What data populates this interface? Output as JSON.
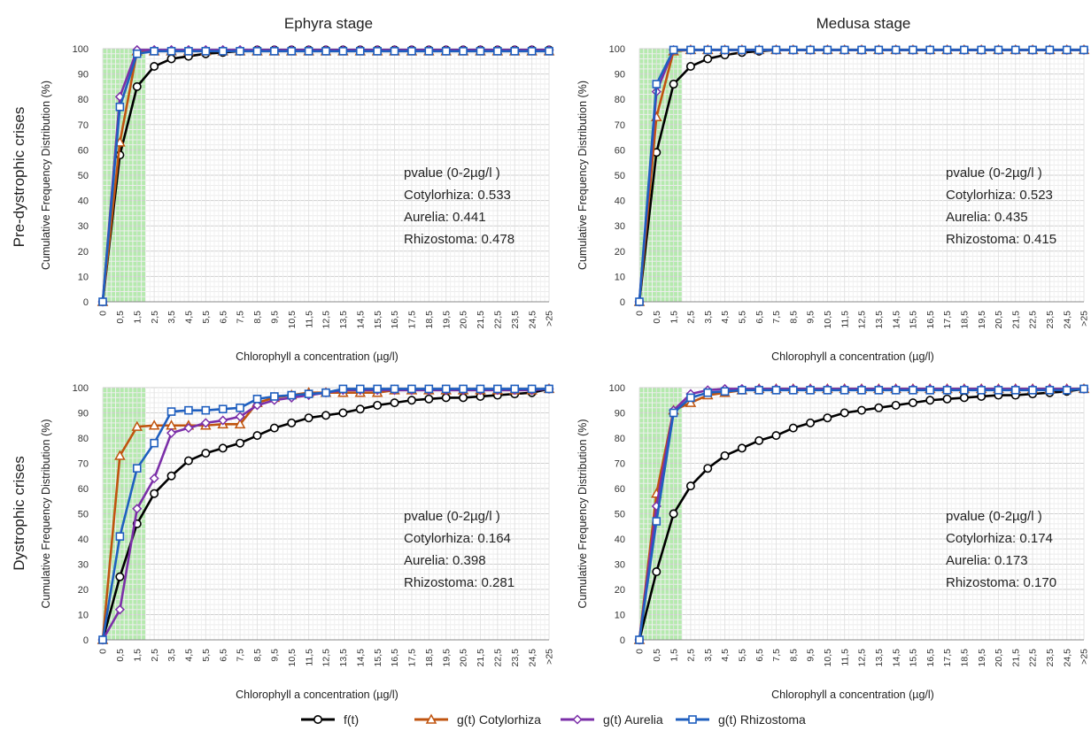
{
  "column_titles": [
    "Ephyra stage",
    "Medusa stage"
  ],
  "row_titles": [
    "Pre-dystrophic crises",
    "Dystrophic crises"
  ],
  "legend": [
    {
      "label": "f(t)",
      "color": "#000000",
      "marker": "circle"
    },
    {
      "label": "g(t) Cotylorhiza",
      "color": "#c0540f",
      "marker": "triangle"
    },
    {
      "label": "g(t) Aurelia",
      "color": "#7b2fa8",
      "marker": "diamond"
    },
    {
      "label": "g(t) Rhizostoma",
      "color": "#1f5fbf",
      "marker": "square"
    }
  ],
  "chart_data": [
    {
      "type": "line",
      "title": "Ephyra stage",
      "row_label": "Pre-dystrophic crises",
      "xlabel": "Chlorophyll a concentration (µg/l)",
      "ylabel": "Cumulative Frequency Distribution (%)",
      "categories": [
        "0",
        "0,5",
        "1,5",
        "2,5",
        "3,5",
        "4,5",
        "5,5",
        "6,5",
        "7,5",
        "8,5",
        "9,5",
        "10,5",
        "11,5",
        "12,5",
        "13,5",
        "14,5",
        "15,5",
        "16,5",
        "17,5",
        "18,5",
        "19,5",
        "20,5",
        "21,5",
        "22,5",
        "23,5",
        "24,5",
        ">25"
      ],
      "ylim": [
        0,
        100
      ],
      "yticks": [
        0,
        10,
        20,
        30,
        40,
        50,
        60,
        70,
        80,
        90,
        100
      ],
      "highlight_band": {
        "from": "0",
        "to": "2",
        "color": "#a8e6a0"
      },
      "grid": true,
      "annotation": [
        "pvalue (0-2µg/l )",
        "Cotylorhiza: 0.533",
        "Aurelia: 0.441",
        "Rhizostoma: 0.478"
      ],
      "series": [
        {
          "name": "f(t)",
          "values": [
            0,
            58,
            85,
            93,
            96,
            97,
            98,
            98.5,
            99,
            99.5,
            99.5,
            99.5,
            99.5,
            99.5,
            99.5,
            99.5,
            99.5,
            99.5,
            99.5,
            99.5,
            99.5,
            99.5,
            99.5,
            99.5,
            99.5,
            99.5,
            99.5
          ]
        },
        {
          "name": "g(t) Cotylorhiza",
          "values": [
            0,
            63,
            99,
            99,
            99,
            99,
            99,
            99,
            99,
            99,
            99,
            99,
            99,
            99,
            99,
            99,
            99,
            99,
            99,
            99,
            99,
            99,
            99,
            99,
            99,
            99,
            99
          ]
        },
        {
          "name": "g(t) Aurelia",
          "values": [
            0,
            81,
            99.5,
            99.5,
            99.5,
            99.5,
            99.5,
            99.5,
            99.5,
            99.5,
            99.5,
            99.5,
            99.5,
            99.5,
            99.5,
            99.5,
            99.5,
            99.5,
            99.5,
            99.5,
            99.5,
            99.5,
            99.5,
            99.5,
            99.5,
            99.5,
            99.5
          ]
        },
        {
          "name": "g(t) Rhizostoma",
          "values": [
            0,
            77,
            98,
            99,
            99,
            99,
            99,
            99,
            99,
            99,
            99,
            99,
            99,
            99,
            99,
            99,
            99,
            99,
            99,
            99,
            99,
            99,
            99,
            99,
            99,
            99,
            99
          ]
        }
      ]
    },
    {
      "type": "line",
      "title": "Medusa stage",
      "row_label": "Pre-dystrophic crises",
      "xlabel": "Chlorophyll a concentration (µg/l)",
      "ylabel": "Cumulative Frequency Distribution (%)",
      "categories": [
        "0",
        "0,5",
        "1,5",
        "2,5",
        "3,5",
        "4,5",
        "5,5",
        "6,5",
        "7,5",
        "8,5",
        "9,5",
        "10,5",
        "11,5",
        "12,5",
        "13,5",
        "14,5",
        "15,5",
        "16,5",
        "17,5",
        "18,5",
        "19,5",
        "20,5",
        "21,5",
        "22,5",
        "23,5",
        "24,5",
        ">25"
      ],
      "ylim": [
        0,
        100
      ],
      "yticks": [
        0,
        10,
        20,
        30,
        40,
        50,
        60,
        70,
        80,
        90,
        100
      ],
      "highlight_band": {
        "from": "0",
        "to": "2",
        "color": "#a8e6a0"
      },
      "grid": true,
      "annotation": [
        "pvalue (0-2µg/l )",
        "Cotylorhiza: 0.523",
        "Aurelia: 0.435",
        "Rhizostoma: 0.415"
      ],
      "series": [
        {
          "name": "f(t)",
          "values": [
            0,
            59,
            86,
            93,
            96,
            97.5,
            98.5,
            99,
            99.5,
            99.5,
            99.5,
            99.5,
            99.5,
            99.5,
            99.5,
            99.5,
            99.5,
            99.5,
            99.5,
            99.5,
            99.5,
            99.5,
            99.5,
            99.5,
            99.5,
            99.5,
            99.5
          ]
        },
        {
          "name": "g(t) Cotylorhiza",
          "values": [
            0,
            73,
            99,
            99.5,
            99.5,
            99.5,
            99.5,
            99.5,
            99.5,
            99.5,
            99.5,
            99.5,
            99.5,
            99.5,
            99.5,
            99.5,
            99.5,
            99.5,
            99.5,
            99.5,
            99.5,
            99.5,
            99.5,
            99.5,
            99.5,
            99.5,
            99.5
          ]
        },
        {
          "name": "g(t) Aurelia",
          "values": [
            0,
            83,
            99.5,
            99.5,
            99.5,
            99.5,
            99.5,
            99.5,
            99.5,
            99.5,
            99.5,
            99.5,
            99.5,
            99.5,
            99.5,
            99.5,
            99.5,
            99.5,
            99.5,
            99.5,
            99.5,
            99.5,
            99.5,
            99.5,
            99.5,
            99.5,
            99.5
          ]
        },
        {
          "name": "g(t) Rhizostoma",
          "values": [
            0,
            86,
            99.5,
            99.5,
            99.5,
            99.5,
            99.5,
            99.5,
            99.5,
            99.5,
            99.5,
            99.5,
            99.5,
            99.5,
            99.5,
            99.5,
            99.5,
            99.5,
            99.5,
            99.5,
            99.5,
            99.5,
            99.5,
            99.5,
            99.5,
            99.5,
            99.5
          ]
        }
      ]
    },
    {
      "type": "line",
      "title": "",
      "row_label": "Dystrophic crises",
      "xlabel": "Chlorophyll a concentration (µg/l)",
      "ylabel": "Cumulative Frequency Distribution (%)",
      "categories": [
        "0",
        "0,5",
        "1,5",
        "2,5",
        "3,5",
        "4,5",
        "5,5",
        "6,5",
        "7,5",
        "8,5",
        "9,5",
        "10,5",
        "11,5",
        "12,5",
        "13,5",
        "14,5",
        "15,5",
        "16,5",
        "17,5",
        "18,5",
        "19,5",
        "20,5",
        "21,5",
        "22,5",
        "23,5",
        "24,5",
        ">25"
      ],
      "ylim": [
        0,
        100
      ],
      "yticks": [
        0,
        10,
        20,
        30,
        40,
        50,
        60,
        70,
        80,
        90,
        100
      ],
      "highlight_band": {
        "from": "0",
        "to": "2",
        "color": "#a8e6a0"
      },
      "grid": true,
      "annotation": [
        "pvalue (0-2µg/l )",
        "Cotylorhiza: 0.164",
        "Aurelia: 0.398",
        "Rhizostoma: 0.281"
      ],
      "series": [
        {
          "name": "f(t)",
          "values": [
            0,
            25,
            46,
            58,
            65,
            71,
            74,
            76,
            78,
            81,
            84,
            86,
            88,
            89,
            90,
            91.5,
            93,
            94,
            95,
            95.5,
            96,
            96,
            96.5,
            97,
            97.5,
            98,
            99.5
          ]
        },
        {
          "name": "g(t) Cotylorhiza",
          "values": [
            0,
            73,
            84.5,
            85,
            85,
            85,
            85,
            85.5,
            85.5,
            94,
            96,
            97,
            98,
            98,
            98,
            98,
            98,
            99,
            99,
            99,
            99,
            99,
            99,
            99,
            99,
            99,
            99.5
          ]
        },
        {
          "name": "g(t) Aurelia",
          "values": [
            0,
            12,
            52,
            64,
            82,
            84,
            86,
            87,
            88.5,
            93,
            95,
            96,
            97,
            98,
            99,
            99,
            99,
            99,
            99,
            99,
            99,
            99,
            99,
            99,
            99,
            99,
            99.5
          ]
        },
        {
          "name": "g(t) Rhizostoma",
          "values": [
            0,
            41,
            68,
            78,
            90.5,
            91,
            91,
            91.5,
            92,
            95.5,
            96.5,
            97,
            97.5,
            98,
            99.5,
            99.5,
            99.5,
            99.5,
            99.5,
            99.5,
            99.5,
            99.5,
            99.5,
            99.5,
            99.5,
            99.5,
            99.5
          ]
        }
      ]
    },
    {
      "type": "line",
      "title": "",
      "row_label": "Dystrophic crises",
      "xlabel": "Chlorophyll a concentration (µg/l)",
      "ylabel": "Cumulative Frequency Distribution (%)",
      "categories": [
        "0",
        "0,5",
        "1,5",
        "2,5",
        "3,5",
        "4,5",
        "5,5",
        "6,5",
        "7,5",
        "8,5",
        "9,5",
        "10,5",
        "11,5",
        "12,5",
        "13,5",
        "14,5",
        "15,5",
        "16,5",
        "17,5",
        "18,5",
        "19,5",
        "20,5",
        "21,5",
        "22,5",
        "23,5",
        "24,5",
        ">25"
      ],
      "ylim": [
        0,
        100
      ],
      "yticks": [
        0,
        10,
        20,
        30,
        40,
        50,
        60,
        70,
        80,
        90,
        100
      ],
      "highlight_band": {
        "from": "0",
        "to": "2",
        "color": "#a8e6a0"
      },
      "grid": true,
      "annotation": [
        "pvalue (0-2µg/l )",
        "Cotylorhiza: 0.174",
        "Aurelia: 0.173",
        "Rhizostoma: 0.170"
      ],
      "series": [
        {
          "name": "f(t)",
          "values": [
            0,
            27,
            50,
            61,
            68,
            73,
            76,
            79,
            81,
            84,
            86,
            88,
            90,
            91,
            92,
            93,
            94,
            95,
            95.5,
            96,
            96.5,
            97,
            97,
            97.5,
            98,
            98.5,
            99.5
          ]
        },
        {
          "name": "g(t) Cotylorhiza",
          "values": [
            0,
            58,
            91,
            94,
            97,
            98,
            99,
            99.5,
            99.5,
            99.5,
            99.5,
            99.5,
            99.5,
            99.5,
            99.5,
            99.5,
            99.5,
            99.5,
            99.5,
            99.5,
            99.5,
            99.5,
            99.5,
            99.5,
            99.5,
            99.5,
            99.5
          ]
        },
        {
          "name": "g(t) Aurelia",
          "values": [
            0,
            53,
            91,
            97.5,
            99,
            99.5,
            99.5,
            99.5,
            99.5,
            99.5,
            99.5,
            99.5,
            99.5,
            99.5,
            99.5,
            99.5,
            99.5,
            99.5,
            99.5,
            99.5,
            99.5,
            99.5,
            99.5,
            99.5,
            99.5,
            99.5,
            99.5
          ]
        },
        {
          "name": "g(t) Rhizostoma",
          "values": [
            0,
            47,
            90,
            96,
            98,
            98.5,
            99,
            99,
            99,
            99,
            99,
            99,
            99,
            99,
            99,
            99,
            99,
            99,
            99,
            99,
            99,
            99,
            99,
            99,
            99,
            99,
            99.5
          ]
        }
      ]
    }
  ]
}
